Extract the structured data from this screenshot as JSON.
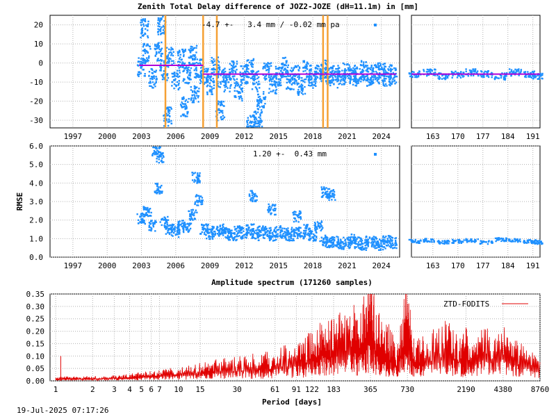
{
  "footer": {
    "timestamp": "19-Jul-2025 07:17:26"
  },
  "colors": {
    "points": "#1e90ff",
    "mean_line": "#b000d8",
    "breaks": "#f5a033",
    "spectrum": "#e00000"
  },
  "chart_data": [
    {
      "id": "ztd_diff_long",
      "type": "scatter",
      "title": "Zenith Total Delay difference of JOZ2-JOZE (dH=11.1m) in [mm]",
      "annotation": "-4.7 +-   3.4 mm / -0.02 mm pa",
      "xlim": [
        1995,
        2025.6
      ],
      "ylim": [
        -34,
        25
      ],
      "x_ticks": [
        "1997",
        "2000",
        "2003",
        "2006",
        "2009",
        "2012",
        "2015",
        "2018",
        "2021",
        "2024"
      ],
      "y_ticks": [
        "20",
        "10",
        "0",
        "-10",
        "-20",
        "-30"
      ],
      "data_start": 2002.8,
      "breaks": [
        2005.1,
        2008.4,
        2009.6,
        2018.9,
        2019.3
      ],
      "mean_segments": [
        {
          "x": [
            2002.8,
            2008.4
          ],
          "y": -1.2
        },
        {
          "x": [
            2008.4,
            2019.3
          ],
          "y": -5.8
        },
        {
          "x": [
            2019.3,
            2025.3
          ],
          "y": -5.8
        }
      ],
      "series": [
        {
          "values": [
            [
              2003.0,
              -2
            ],
            [
              2003.5,
              5
            ],
            [
              2004.0,
              -8
            ],
            [
              2004.5,
              6
            ],
            [
              2005.0,
              -4
            ],
            [
              2005.5,
              3
            ],
            [
              2006.0,
              -9
            ],
            [
              2006.5,
              2
            ],
            [
              2007.0,
              -6
            ],
            [
              2007.5,
              4
            ],
            [
              2008.0,
              -3
            ],
            [
              2008.5,
              -7
            ],
            [
              2009.0,
              -12
            ],
            [
              2009.5,
              -2
            ],
            [
              2010.0,
              -8
            ],
            [
              2010.5,
              -10
            ],
            [
              2011.0,
              -4
            ],
            [
              2011.5,
              -15
            ],
            [
              2012.0,
              -6
            ],
            [
              2012.5,
              -3
            ],
            [
              2013.0,
              -9
            ],
            [
              2013.5,
              -20
            ],
            [
              2014.0,
              -5
            ],
            [
              2014.5,
              -11
            ],
            [
              2015.0,
              -7
            ],
            [
              2015.5,
              -2
            ],
            [
              2016.0,
              -9
            ],
            [
              2016.5,
              -6
            ],
            [
              2017.0,
              -12
            ],
            [
              2017.5,
              -4
            ],
            [
              2018.0,
              -8
            ],
            [
              2018.5,
              -6
            ],
            [
              2019.0,
              -3
            ],
            [
              2019.5,
              -7
            ],
            [
              2020.0,
              -6
            ],
            [
              2020.5,
              -8
            ],
            [
              2021.0,
              -5
            ],
            [
              2021.5,
              -7
            ],
            [
              2022.0,
              -6
            ],
            [
              2022.5,
              -4
            ],
            [
              2023.0,
              -7
            ],
            [
              2023.5,
              -6
            ],
            [
              2024.0,
              -5
            ],
            [
              2024.5,
              -7
            ],
            [
              2025.0,
              -6
            ],
            [
              2003.3,
              18
            ],
            [
              2004.8,
              20
            ],
            [
              2012.6,
              -32
            ],
            [
              2013.2,
              -30
            ],
            [
              2006.8,
              -23
            ],
            [
              2009.9,
              -25
            ],
            [
              2007.7,
              -17
            ],
            [
              2005.3,
              -28
            ]
          ]
        }
      ]
    },
    {
      "id": "ztd_diff_recent",
      "type": "scatter",
      "xlim": [
        157,
        193
      ],
      "ylim": [
        -34,
        25
      ],
      "x_ticks": [
        "163",
        "170",
        "177",
        "184",
        "191"
      ],
      "mean_y": -5.8,
      "series": [
        {
          "values": [
            [
              158,
              -6
            ],
            [
              162,
              -5
            ],
            [
              166,
              -7
            ],
            [
              170,
              -6
            ],
            [
              174,
              -5
            ],
            [
              178,
              -6
            ],
            [
              182,
              -7
            ],
            [
              186,
              -5
            ],
            [
              190,
              -6
            ],
            [
              192,
              -7
            ]
          ]
        }
      ]
    },
    {
      "id": "rmse_long",
      "type": "scatter",
      "ylabel": "RMSE",
      "annotation": "1.20 +-  0.43 mm",
      "xlim": [
        1995,
        2025.6
      ],
      "ylim": [
        0,
        6
      ],
      "x_ticks": [
        "1997",
        "2000",
        "2003",
        "2006",
        "2009",
        "2012",
        "2015",
        "2018",
        "2021",
        "2024"
      ],
      "y_ticks": [
        "6.0",
        "5.0",
        "4.0",
        "3.0",
        "2.0",
        "1.0",
        "0.0"
      ],
      "series": [
        {
          "values": [
            [
              2003.0,
              2.2
            ],
            [
              2003.5,
              2.6
            ],
            [
              2004.0,
              1.8
            ],
            [
              2004.5,
              3.8
            ],
            [
              2005.0,
              2.0
            ],
            [
              2005.5,
              1.6
            ],
            [
              2006.0,
              1.5
            ],
            [
              2006.5,
              1.8
            ],
            [
              2007.0,
              1.7
            ],
            [
              2007.5,
              2.4
            ],
            [
              2008.0,
              3.2
            ],
            [
              2008.5,
              1.6
            ],
            [
              2009.0,
              1.4
            ],
            [
              2009.5,
              1.5
            ],
            [
              2010.0,
              1.6
            ],
            [
              2010.5,
              1.4
            ],
            [
              2011.0,
              1.3
            ],
            [
              2011.5,
              1.5
            ],
            [
              2012.0,
              1.4
            ],
            [
              2012.5,
              1.6
            ],
            [
              2013.0,
              1.3
            ],
            [
              2013.5,
              1.5
            ],
            [
              2014.0,
              1.4
            ],
            [
              2014.5,
              1.3
            ],
            [
              2015.0,
              1.5
            ],
            [
              2015.5,
              1.4
            ],
            [
              2016.0,
              1.3
            ],
            [
              2016.5,
              1.5
            ],
            [
              2017.0,
              1.4
            ],
            [
              2017.5,
              1.6
            ],
            [
              2018.0,
              1.3
            ],
            [
              2018.5,
              1.8
            ],
            [
              2019.0,
              1.0
            ],
            [
              2019.5,
              0.9
            ],
            [
              2020.0,
              1.0
            ],
            [
              2020.5,
              0.8
            ],
            [
              2021.0,
              0.9
            ],
            [
              2021.5,
              1.1
            ],
            [
              2022.0,
              0.9
            ],
            [
              2022.5,
              0.8
            ],
            [
              2023.0,
              1.0
            ],
            [
              2023.5,
              0.9
            ],
            [
              2024.0,
              0.8
            ],
            [
              2024.5,
              1.0
            ],
            [
              2025.0,
              0.9
            ],
            [
              2004.3,
              5.9
            ],
            [
              2004.6,
              5.5
            ],
            [
              2007.8,
              4.4
            ],
            [
              2012.8,
              3.4
            ],
            [
              2019.1,
              3.6
            ],
            [
              2019.6,
              3.5
            ],
            [
              2014.4,
              2.7
            ],
            [
              2016.6,
              2.3
            ]
          ]
        }
      ]
    },
    {
      "id": "rmse_recent",
      "type": "scatter",
      "xlim": [
        157,
        193
      ],
      "ylim": [
        0,
        6
      ],
      "x_ticks": [
        "163",
        "170",
        "177",
        "184",
        "191"
      ],
      "series": [
        {
          "values": [
            [
              158,
              0.85
            ],
            [
              162,
              0.9
            ],
            [
              166,
              0.8
            ],
            [
              170,
              0.85
            ],
            [
              174,
              0.9
            ],
            [
              178,
              0.8
            ],
            [
              182,
              0.95
            ],
            [
              186,
              0.9
            ],
            [
              190,
              0.85
            ],
            [
              192,
              0.8
            ]
          ]
        }
      ]
    },
    {
      "id": "spectrum",
      "type": "line",
      "title": "Amplitude spectrum (171260 samples)",
      "xlabel": "Period [days]",
      "legend": "ZTD-FODITS",
      "legend_position": "top-right",
      "xscale": "log",
      "xlim": [
        0.9,
        8760
      ],
      "ylim": [
        0,
        0.35
      ],
      "x_ticks": [
        "1",
        "2",
        "3",
        "4",
        "5",
        "6",
        "7",
        "10",
        "15",
        "30",
        "61",
        "91",
        "122",
        "183",
        "365",
        "730",
        "2190",
        "4380",
        "8760"
      ],
      "y_ticks": [
        "0.35",
        "0.30",
        "0.25",
        "0.20",
        "0.15",
        "0.10",
        "0.05",
        "0.00"
      ],
      "series": [
        {
          "name": "ZTD-FODITS",
          "values": [
            [
              1,
              0.01
            ],
            [
              1.2,
              0.015
            ],
            [
              1.5,
              0.012
            ],
            [
              2,
              0.014
            ],
            [
              3,
              0.015
            ],
            [
              4,
              0.02
            ],
            [
              5,
              0.025
            ],
            [
              7,
              0.03
            ],
            [
              10,
              0.04
            ],
            [
              15,
              0.05
            ],
            [
              20,
              0.06
            ],
            [
              30,
              0.07
            ],
            [
              45,
              0.08
            ],
            [
              61,
              0.09
            ],
            [
              91,
              0.11
            ],
            [
              122,
              0.14
            ],
            [
              150,
              0.19
            ],
            [
              183,
              0.17
            ],
            [
              250,
              0.23
            ],
            [
              300,
              0.18
            ],
            [
              365,
              0.34
            ],
            [
              400,
              0.22
            ],
            [
              500,
              0.17
            ],
            [
              600,
              0.1
            ],
            [
              730,
              0.29
            ],
            [
              800,
              0.14
            ],
            [
              1000,
              0.13
            ],
            [
              1500,
              0.17
            ],
            [
              2000,
              0.13
            ],
            [
              2190,
              0.15
            ],
            [
              3000,
              0.15
            ],
            [
              4380,
              0.155
            ],
            [
              6000,
              0.11
            ],
            [
              8760,
              0.075
            ]
          ]
        }
      ]
    }
  ]
}
